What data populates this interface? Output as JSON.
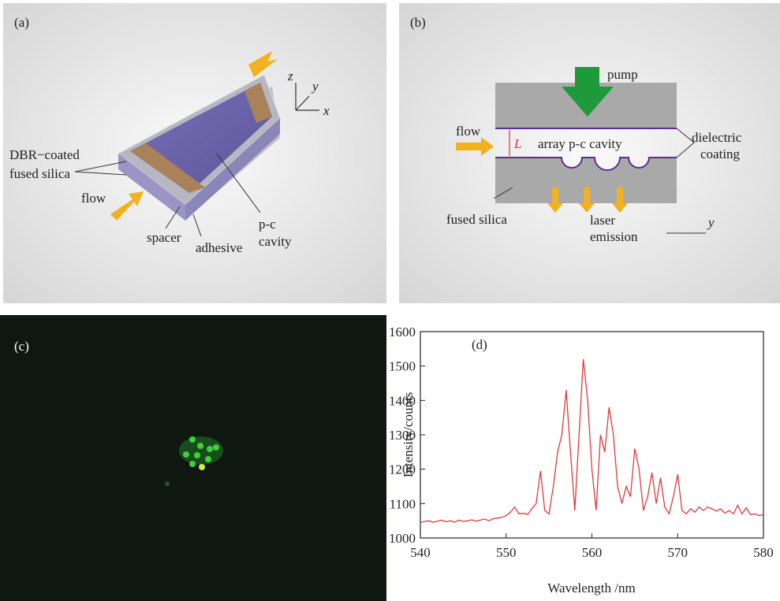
{
  "panels": {
    "a": {
      "label": "(a)",
      "dbr_line1": "DBR−coated",
      "dbr_line2": "fused silica",
      "flow": "flow",
      "spacer": "spacer",
      "adhesive": "adhesive",
      "pc_line1": "p-c",
      "pc_line2": "cavity",
      "axis_z": "z",
      "axis_y": "y",
      "axis_x": "x"
    },
    "b": {
      "label": "(b)",
      "pump": "pump",
      "flow": "flow",
      "gap": "L",
      "cavity": "array p-c cavity",
      "coating_line1": "dielectric",
      "coating_line2": "coating",
      "silica": "fused silica",
      "emission_line1": "laser",
      "emission_line2": "emission",
      "axis_y": "y"
    },
    "c": {
      "label": "(c)"
    },
    "d": {
      "label": "(d)"
    }
  },
  "chart_data": {
    "type": "line",
    "x_label": "Wavelength /nm",
    "y_label": "Intensity/counts",
    "color": "#e0393c",
    "x": [
      540,
      540.5,
      541,
      541.5,
      542,
      542.5,
      543,
      543.5,
      544,
      544.5,
      545,
      545.5,
      546,
      546.5,
      547,
      547.5,
      548,
      548.5,
      549,
      549.5,
      550,
      550.5,
      551,
      551.5,
      552,
      552.5,
      553,
      553.5,
      554,
      554.5,
      555,
      555.5,
      556,
      556.5,
      557,
      557.5,
      558,
      558.5,
      559,
      559.5,
      560,
      560.5,
      561,
      561.5,
      562,
      562.5,
      563,
      563.5,
      564,
      564.5,
      565,
      565.5,
      566,
      566.5,
      567,
      567.5,
      568,
      568.5,
      569,
      569.5,
      570,
      570.5,
      571,
      571.5,
      572,
      572.5,
      573,
      573.5,
      574,
      574.5,
      575,
      575.5,
      576,
      576.5,
      577,
      577.5,
      578,
      578.5,
      579,
      579.5,
      580
    ],
    "values": [
      1045,
      1048,
      1050,
      1046,
      1049,
      1052,
      1047,
      1050,
      1046,
      1052,
      1048,
      1050,
      1053,
      1049,
      1052,
      1055,
      1050,
      1056,
      1058,
      1060,
      1065,
      1075,
      1090,
      1070,
      1072,
      1068,
      1085,
      1100,
      1195,
      1080,
      1070,
      1150,
      1250,
      1300,
      1430,
      1250,
      1080,
      1300,
      1520,
      1400,
      1200,
      1080,
      1300,
      1250,
      1380,
      1300,
      1150,
      1100,
      1150,
      1120,
      1260,
      1200,
      1080,
      1120,
      1190,
      1100,
      1175,
      1090,
      1070,
      1120,
      1185,
      1080,
      1070,
      1085,
      1075,
      1090,
      1080,
      1090,
      1085,
      1078,
      1085,
      1072,
      1080,
      1070,
      1095,
      1070,
      1088,
      1068,
      1070,
      1065,
      1068
    ],
    "xlim": [
      540,
      580
    ],
    "ylim": [
      1000,
      1600
    ],
    "xticks": [
      540,
      550,
      560,
      570,
      580
    ],
    "yticks": [
      1000,
      1100,
      1200,
      1300,
      1400,
      1500,
      1600
    ]
  }
}
